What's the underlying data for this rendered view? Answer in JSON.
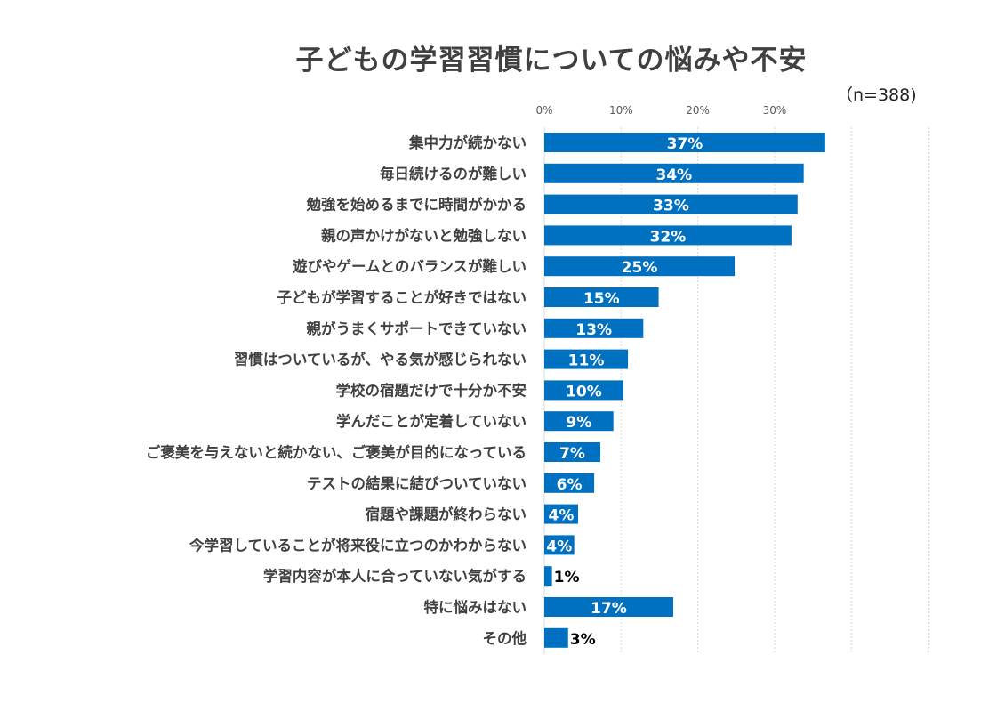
{
  "chart_data": {
    "type": "bar",
    "orientation": "horizontal",
    "title": "子どもの学習習慣についての悩みや不安",
    "subtitle": "（n=388)",
    "xlim": [
      0,
      50
    ],
    "x_ticks": [
      "0%",
      "10%",
      "20%",
      "30%"
    ],
    "grid": true,
    "bar_color": "#0070C0",
    "categories": [
      "集中力が続かない",
      "毎日続けるのが難しい",
      "勉強を始めるまでに時間がかかる",
      "親の声かけがないと勉強しない",
      "遊びやゲームとのバランスが難しい",
      "子どもが学習することが好きではない",
      "親がうまくサポートできていない",
      "習慣はついているが、やる気が感じられない",
      "学校の宿題だけで十分か不安",
      "学んだことが定着していない",
      "ご褒美を与えないと続かない、ご褒美が目的になっている",
      "テストの結果に結びついていない",
      "宿題や課題が終わらない",
      "今学習していることが将来役に立つのかわからない",
      "学習内容が本人に合っていない気がする",
      "特に悩みはない",
      "その他"
    ],
    "values": [
      36.6,
      33.8,
      33.0,
      32.2,
      24.8,
      14.9,
      12.9,
      10.9,
      10.3,
      9.0,
      7.3,
      6.5,
      4.4,
      3.9,
      1.0,
      16.8,
      3.1
    ],
    "data_labels": [
      "37%",
      "34%",
      "33%",
      "32%",
      "25%",
      "15%",
      "13%",
      "11%",
      "10%",
      "9%",
      "7%",
      "6%",
      "4%",
      "4%",
      "1%",
      "17%",
      "3%"
    ]
  }
}
